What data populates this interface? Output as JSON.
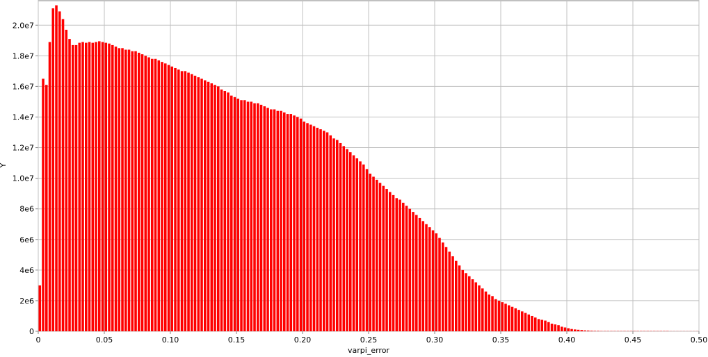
{
  "chart_data": {
    "type": "histogram",
    "x_label": "varpi_error",
    "y_label": "Y",
    "color": "#ff0000",
    "grid": true,
    "xlim": [
      0,
      0.5
    ],
    "ylim": [
      0,
      21600000
    ],
    "xticks": [
      0,
      0.05,
      {
        "value": 0.1,
        "label": "0.10"
      },
      0.15,
      {
        "value": 0.2,
        "label": "0.20"
      },
      0.25,
      {
        "value": 0.3,
        "label": "0.30"
      },
      0.35,
      {
        "value": 0.4,
        "label": "0.40"
      },
      0.45,
      {
        "value": 0.5,
        "label": "0.50"
      }
    ],
    "yticks": [
      0,
      {
        "value": 2000000,
        "label": "2e6"
      },
      {
        "value": 4000000,
        "label": "4e6"
      },
      {
        "value": 6000000,
        "label": "6e6"
      },
      {
        "value": 8000000,
        "label": "8e6"
      },
      {
        "value": 10000000,
        "label": "1.0e7"
      },
      {
        "value": 12000000,
        "label": "1.2e7"
      },
      {
        "value": 14000000,
        "label": "1.4e7"
      },
      {
        "value": 16000000,
        "label": "1.6e7"
      },
      {
        "value": 18000000,
        "label": "1.8e7"
      },
      {
        "value": 20000000,
        "label": "2.0e7"
      }
    ],
    "bins": [
      0,
      0.0025,
      0.005,
      0.0075,
      0.01,
      0.0125,
      0.015,
      0.0175,
      0.02,
      0.0225,
      0.025,
      0.0275,
      0.03,
      0.0325,
      0.035,
      0.0375,
      0.04,
      0.0425,
      0.045,
      0.0475,
      0.05,
      0.0525,
      0.055,
      0.0575,
      0.06,
      0.0625,
      0.065,
      0.0675,
      0.07,
      0.0725,
      0.075,
      0.0775,
      0.08,
      0.0825,
      0.085,
      0.0875,
      0.09,
      0.0925,
      0.095,
      0.0975,
      0.1,
      0.1025,
      0.105,
      0.1075,
      0.11,
      0.1125,
      0.115,
      0.1175,
      0.12,
      0.1225,
      0.125,
      0.1275,
      0.13,
      0.1325,
      0.135,
      0.1375,
      0.14,
      0.1425,
      0.145,
      0.1475,
      0.15,
      0.1525,
      0.155,
      0.1575,
      0.16,
      0.1625,
      0.165,
      0.1675,
      0.17,
      0.1725,
      0.175,
      0.1775,
      0.18,
      0.1825,
      0.185,
      0.1875,
      0.19,
      0.1925,
      0.195,
      0.1975,
      0.2,
      0.2025,
      0.205,
      0.2075,
      0.21,
      0.2125,
      0.215,
      0.2175,
      0.22,
      0.2225,
      0.225,
      0.2275,
      0.23,
      0.2325,
      0.235,
      0.2375,
      0.24,
      0.2425,
      0.245,
      0.2475,
      0.25,
      0.2525,
      0.255,
      0.2575,
      0.26,
      0.2625,
      0.265,
      0.2675,
      0.27,
      0.2725,
      0.275,
      0.2775,
      0.28,
      0.2825,
      0.285,
      0.2875,
      0.29,
      0.2925,
      0.295,
      0.2975,
      0.3,
      0.3025,
      0.305,
      0.3075,
      0.31,
      0.3125,
      0.315,
      0.3175,
      0.32,
      0.3225,
      0.325,
      0.3275,
      0.33,
      0.3325,
      0.335,
      0.3375,
      0.34,
      0.3425,
      0.345,
      0.3475,
      0.35,
      0.3525,
      0.355,
      0.3575,
      0.36,
      0.3625,
      0.365,
      0.3675,
      0.37,
      0.3725,
      0.375,
      0.3775,
      0.38,
      0.3825,
      0.385,
      0.3875,
      0.39,
      0.3925,
      0.395,
      0.3975,
      0.4,
      0.4025,
      0.405,
      0.4075,
      0.41,
      0.4125,
      0.415,
      0.4175,
      0.42,
      0.4225,
      0.425,
      0.4275,
      0.43,
      0.4325,
      0.435,
      0.4375,
      0.44,
      0.4425,
      0.445,
      0.4475,
      0.45,
      0.4525,
      0.455,
      0.4575,
      0.46,
      0.4625,
      0.465,
      0.4675,
      0.47,
      0.4725,
      0.475,
      0.4775,
      0.48,
      0.4825,
      0.485,
      0.4875,
      0.49,
      0.4925,
      0.495,
      0.4975,
      0.5
    ],
    "values": [
      3000000,
      16500000,
      16100000,
      18900000,
      21100000,
      21300000,
      20900000,
      20400000,
      19700000,
      19100000,
      18700000,
      18700000,
      18850000,
      18900000,
      18850000,
      18900000,
      18850000,
      18900000,
      18950000,
      18900000,
      18850000,
      18800000,
      18700000,
      18600000,
      18500000,
      18500000,
      18400000,
      18400000,
      18300000,
      18300000,
      18200000,
      18100000,
      18000000,
      17900000,
      17800000,
      17800000,
      17700000,
      17600000,
      17500000,
      17400000,
      17300000,
      17200000,
      17100000,
      17000000,
      17000000,
      16900000,
      16800000,
      16700000,
      16600000,
      16500000,
      16400000,
      16300000,
      16200000,
      16100000,
      16000000,
      15800000,
      15700000,
      15600000,
      15400000,
      15300000,
      15200000,
      15100000,
      15100000,
      15000000,
      15000000,
      14900000,
      14900000,
      14800000,
      14700000,
      14600000,
      14500000,
      14500000,
      14400000,
      14400000,
      14300000,
      14200000,
      14200000,
      14100000,
      14000000,
      13900000,
      13700000,
      13600000,
      13500000,
      13400000,
      13300000,
      13200000,
      13100000,
      13000000,
      12800000,
      12600000,
      12500000,
      12300000,
      12100000,
      11900000,
      11700000,
      11500000,
      11300000,
      11100000,
      10900000,
      10600000,
      10300000,
      10100000,
      9900000,
      9700000,
      9500000,
      9300000,
      9100000,
      8900000,
      8700000,
      8600000,
      8400000,
      8200000,
      8000000,
      7800000,
      7600000,
      7400000,
      7200000,
      7000000,
      6800000,
      6600000,
      6400000,
      6100000,
      5800000,
      5500000,
      5200000,
      4900000,
      4600000,
      4300000,
      4000000,
      3800000,
      3600000,
      3400000,
      3200000,
      3000000,
      2800000,
      2600000,
      2400000,
      2300000,
      2100000,
      2000000,
      1900000,
      1800000,
      1700000,
      1600000,
      1500000,
      1400000,
      1300000,
      1200000,
      1100000,
      1000000,
      900000,
      800000,
      750000,
      700000,
      600000,
      500000,
      450000,
      400000,
      300000,
      250000,
      200000,
      150000,
      120000,
      100000,
      80000,
      60000,
      50000,
      40000,
      30000,
      30000,
      20000,
      20000,
      20000,
      20000,
      20000,
      20000,
      20000,
      20000,
      20000,
      20000,
      20000,
      20000,
      20000,
      20000,
      20000,
      20000,
      20000,
      20000,
      20000,
      20000,
      20000,
      10000,
      10000,
      10000,
      10000,
      10000,
      10000,
      10000,
      10000,
      10000
    ]
  }
}
